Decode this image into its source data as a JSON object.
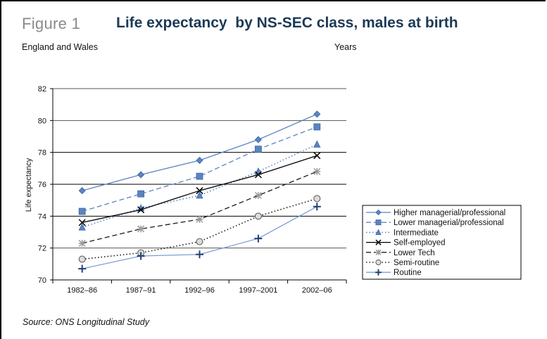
{
  "figure_label": "Figure 1",
  "subtitle_left": "England and Wales",
  "subtitle_right": "Years",
  "source": "Source: ONS Longitudinal Study",
  "chart_data": {
    "type": "line",
    "title": "Life expectancy  by NS-SEC class, males at birth",
    "xlabel": "",
    "ylabel": "Life expectancy",
    "categories": [
      "1982–86",
      "1987–91",
      "1992–96",
      "1997–2001",
      "2002–06"
    ],
    "ylim": [
      70,
      82
    ],
    "yticks": [
      70,
      72,
      74,
      76,
      78,
      80,
      82
    ],
    "grid": true,
    "legend_position": "right",
    "series": [
      {
        "name": "Higher managerial/professional",
        "values": [
          75.6,
          76.6,
          77.5,
          78.8,
          80.4
        ],
        "color": "#5b84bf",
        "dash": "solid",
        "marker": "diamond"
      },
      {
        "name": "Lower managerial/professional",
        "values": [
          74.3,
          75.4,
          76.5,
          78.2,
          79.6
        ],
        "color": "#5b84bf",
        "dash": "dashed",
        "marker": "square"
      },
      {
        "name": "Intermediate",
        "values": [
          73.3,
          74.5,
          75.3,
          76.8,
          78.5
        ],
        "color": "#5b84bf",
        "dash": "dotted",
        "marker": "triangle"
      },
      {
        "name": "Self-employed",
        "values": [
          73.6,
          74.4,
          75.6,
          76.6,
          77.8
        ],
        "color": "#000000",
        "dash": "solid",
        "marker": "x"
      },
      {
        "name": "Lower Tech",
        "values": [
          72.3,
          73.2,
          73.8,
          75.3,
          76.8
        ],
        "color": "#1a1a1a",
        "dash": "dashed",
        "marker": "asterisk"
      },
      {
        "name": "Semi-routine",
        "values": [
          71.3,
          71.7,
          72.4,
          74.0,
          75.1
        ],
        "color": "#1a1a1a",
        "dash": "dotted",
        "marker": "circle"
      },
      {
        "name": "Routine",
        "values": [
          70.7,
          71.5,
          71.6,
          72.6,
          74.6
        ],
        "color": "#7a9fd2",
        "dash": "solid",
        "marker": "plus"
      }
    ]
  }
}
